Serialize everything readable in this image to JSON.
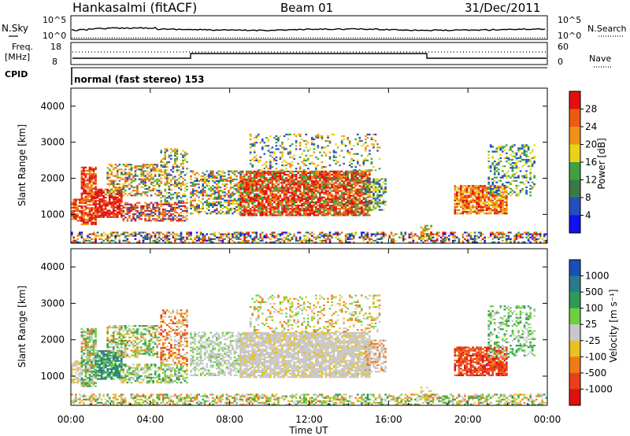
{
  "header": {
    "station": "Hankasalmi (fitACF)",
    "beam": "Beam 01",
    "date": "31/Dec/2011"
  },
  "noise_panel": {
    "left_label": "N.Sky",
    "right_label": "N.Search",
    "left_ticks": [
      "10^5",
      "10^0"
    ],
    "right_ticks": [
      "10^5",
      "10^0"
    ]
  },
  "freq_panel": {
    "left_label_1": "Freq.",
    "left_label_2": "[MHz]",
    "left_ticks": [
      "18",
      "8"
    ],
    "right_label": "Nave",
    "right_ticks": [
      "60",
      "0"
    ]
  },
  "cpid": {
    "label": "CPID",
    "text": "normal (fast stereo) 153"
  },
  "chart_data": [
    {
      "type": "heatmap",
      "name": "power",
      "ylabel": "Slant Range [km]",
      "yticks": [
        "1000",
        "2000",
        "3000",
        "4000"
      ],
      "ylim": [
        200,
        4500
      ],
      "xlim": [
        0,
        24
      ],
      "colorbar": {
        "label": "Power [dB]",
        "ticks": [
          "4",
          "8",
          "12",
          "16",
          "20",
          "24",
          "28"
        ],
        "colors": [
          "#1010f0",
          "#2050b8",
          "#3a7a4a",
          "#40a040",
          "#e8d21a",
          "#f09018",
          "#ee5a14",
          "#e01010"
        ]
      }
    },
    {
      "type": "heatmap",
      "name": "velocity",
      "ylabel": "Slant Range [km]",
      "yticks": [
        "1000",
        "2000",
        "3000",
        "4000"
      ],
      "ylim": [
        200,
        4500
      ],
      "xlim": [
        0,
        24
      ],
      "colorbar": {
        "label": "Velocity [m s⁻¹]",
        "ticks": [
          "1000",
          "500",
          "100",
          "25",
          "-25",
          "-100",
          "-500",
          "-1000"
        ],
        "colors": [
          "#1a4fb8",
          "#2a7a8a",
          "#2f9a55",
          "#6cd040",
          "#c8c8c8",
          "#e8c020",
          "#f07a18",
          "#e8401a",
          "#e01010"
        ]
      }
    }
  ],
  "x_axis": {
    "ticks": [
      "00:00",
      "04:00",
      "08:00",
      "12:00",
      "16:00",
      "20:00",
      "00:00"
    ],
    "label": "Time UT"
  }
}
